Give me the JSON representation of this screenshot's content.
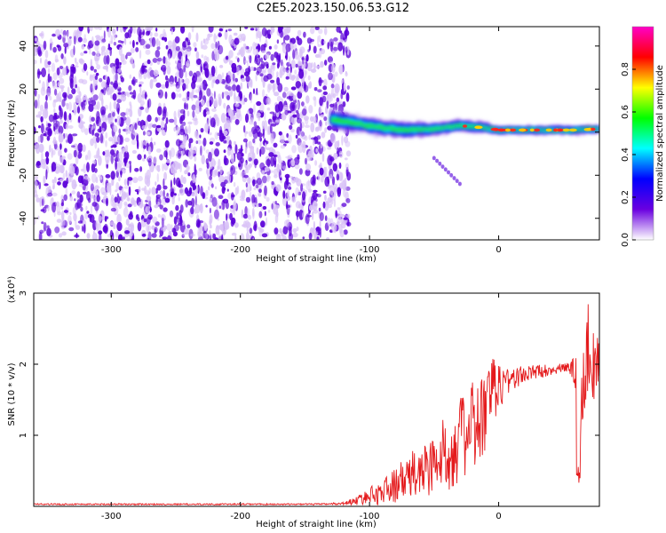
{
  "title": "C2E5.2023.150.06.53.G12",
  "colors": {
    "snr_line": "#e41a1c",
    "speckle_dark": "#5a00d8",
    "speckle_light": "#d9c2f7"
  },
  "chart_data": [
    {
      "type": "heatmap",
      "xlabel": "Height of straight line (km)",
      "ylabel": "Frequency (Hz)",
      "xlim": [
        -360,
        78
      ],
      "ylim": [
        -50,
        49
      ],
      "x_ticks": [
        -300,
        -200,
        -100,
        0
      ],
      "x_tick_labels": [
        "-300",
        "-200",
        "-100",
        "0"
      ],
      "y_ticks": [
        -40,
        -20,
        0,
        20,
        40
      ],
      "y_tick_labels": [
        "-40",
        "-20",
        "0",
        "20",
        "40"
      ],
      "noise_region_x": [
        -360,
        -122
      ],
      "signal_track": {
        "x": [
          -130,
          -110,
          -90,
          -70,
          -50,
          -30,
          -10,
          0,
          20,
          40,
          60,
          78
        ],
        "freq_hz": [
          6,
          4,
          2,
          1,
          1.5,
          3,
          2,
          1,
          1,
          1,
          1,
          1.5
        ],
        "halfwidth_hz": [
          5,
          4,
          4,
          4,
          3,
          3,
          2.5,
          2,
          2,
          2,
          2,
          2
        ]
      },
      "secondary_feature": {
        "x": [
          -50,
          -30
        ],
        "freq_hz": [
          -12,
          -24
        ]
      },
      "grid": false,
      "colorbar": {
        "label": "Normalized spectral amplitude",
        "ticks": [
          0.0,
          0.2,
          0.4,
          0.6,
          0.8
        ],
        "tick_labels": [
          "0.0",
          "0.2",
          "0.4",
          "0.6",
          "0.8"
        ],
        "range": [
          0,
          1
        ],
        "colormap": [
          "#ffffff",
          "#6a00e0",
          "#0000ff",
          "#00ffff",
          "#00ff00",
          "#ffff00",
          "#ff0000",
          "#ff00c8"
        ]
      }
    },
    {
      "type": "line",
      "xlabel": "Height of straight line (km)",
      "ylabel": "SNR (10 * v/v)",
      "y_scale_label": "(x10⁴)",
      "xlim": [
        -360,
        78
      ],
      "ylim": [
        0,
        3
      ],
      "x_ticks": [
        -300,
        -200,
        -100,
        0
      ],
      "x_tick_labels": [
        "-300",
        "-200",
        "-100",
        "0"
      ],
      "y_ticks": [
        1,
        2,
        3
      ],
      "y_tick_labels": [
        "1",
        "2",
        "3"
      ],
      "grid": false,
      "series": [
        {
          "x": [
            -360,
            -340,
            -300,
            -260,
            -220,
            -180,
            -140,
            -120,
            -110,
            -100,
            -90,
            -80,
            -70,
            -60,
            -50,
            -40,
            -30,
            -20,
            -10,
            -5,
            0,
            10,
            20,
            30,
            40,
            50,
            55,
            60,
            62,
            65,
            70,
            75,
            78
          ],
          "values": [
            0.03,
            0.03,
            0.03,
            0.03,
            0.03,
            0.03,
            0.03,
            0.04,
            0.08,
            0.15,
            0.2,
            0.3,
            0.4,
            0.5,
            0.6,
            0.75,
            0.95,
            1.1,
            1.3,
            1.6,
            1.7,
            1.8,
            1.85,
            1.9,
            1.92,
            1.95,
            1.95,
            1.9,
            0.3,
            2.0,
            2.3,
            1.8,
            2.1
          ],
          "spread": [
            0.01,
            0.01,
            0.01,
            0.01,
            0.01,
            0.01,
            0.01,
            0.02,
            0.06,
            0.12,
            0.18,
            0.25,
            0.32,
            0.4,
            0.45,
            0.55,
            0.6,
            0.65,
            0.7,
            0.5,
            0.35,
            0.2,
            0.12,
            0.1,
            0.08,
            0.06,
            0.08,
            0.5,
            0.1,
            0.8,
            0.6,
            0.5,
            0.4
          ]
        }
      ]
    }
  ]
}
